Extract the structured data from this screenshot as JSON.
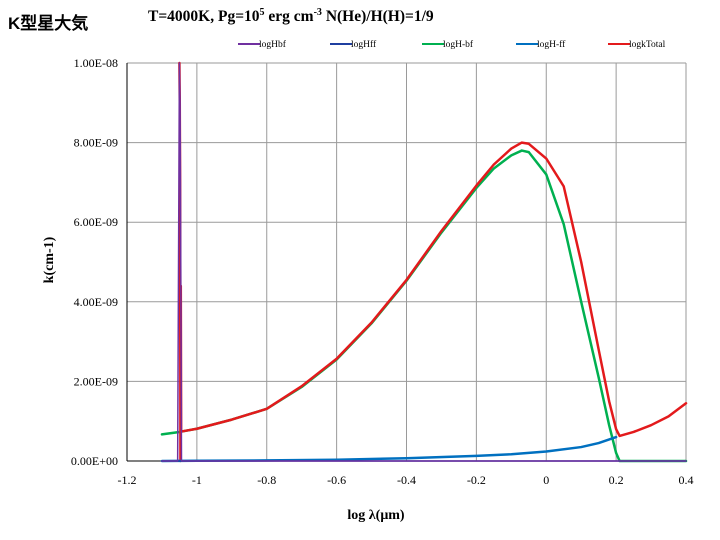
{
  "page": {
    "tag": "K型星大気"
  },
  "chart_data": {
    "type": "line",
    "title_parts": {
      "main": "T=4000K, Pg=10",
      "sup1": "5",
      "mid": " erg cm",
      "sup2": "-3",
      "tail": " N(He)/H(H)=1/9"
    },
    "xlabel": "log λ(μm)",
    "ylabel": "k(cm-1)",
    "xlim": [
      -1.2,
      0.4
    ],
    "ylim": [
      0,
      1e-08
    ],
    "x_ticks": [
      -1.2,
      -1,
      -0.8,
      -0.6,
      -0.4,
      -0.2,
      0,
      0.2,
      0.4
    ],
    "x_tick_labels": [
      "-1.2",
      "-1",
      "-0.8",
      "-0.6",
      "-0.4",
      "-0.2",
      "0",
      "0.2",
      "0.4"
    ],
    "y_ticks": [
      0,
      2e-09,
      4e-09,
      6e-09,
      8e-09,
      1e-08
    ],
    "y_tick_labels": [
      "0.00E+00",
      "2.00E-09",
      "4.00E-09",
      "6.00E-09",
      "8.00E-09",
      "1.00E-08"
    ],
    "grid": true,
    "legend_position": "top",
    "series": [
      {
        "name": "logHbf",
        "color": "#7030a0",
        "points": [
          [
            -1.1,
            0.0
          ],
          [
            -1.06,
            0.0
          ],
          [
            -1.055,
            0.0
          ],
          [
            -1.05,
            1e-08
          ],
          [
            -1.048,
            9e-09
          ],
          [
            -1.047,
            7e-09
          ],
          [
            -1.045,
            2.6e-09
          ],
          [
            -1.044,
            0.0
          ],
          [
            -0.8,
            0.0
          ],
          [
            -0.4,
            0.0
          ],
          [
            0.0,
            0.0
          ],
          [
            0.2,
            0.0
          ],
          [
            0.4,
            0.0
          ]
        ]
      },
      {
        "name": "logHff",
        "color": "#1f3fa0",
        "points": [
          [
            -1.1,
            0.0
          ],
          [
            -0.8,
            0.0
          ],
          [
            -0.4,
            0.0
          ],
          [
            0.0,
            0.0
          ],
          [
            0.2,
            0.0
          ],
          [
            0.4,
            0.0
          ]
        ]
      },
      {
        "name": "logH-bf",
        "color": "#00b050",
        "points": [
          [
            -1.1,
            6.7e-10
          ],
          [
            -1.05,
            7.3e-10
          ],
          [
            -1.0,
            8.1e-10
          ],
          [
            -0.9,
            1.04e-09
          ],
          [
            -0.8,
            1.31e-09
          ],
          [
            -0.7,
            1.86e-09
          ],
          [
            -0.6,
            2.55e-09
          ],
          [
            -0.5,
            3.46e-09
          ],
          [
            -0.4,
            4.53e-09
          ],
          [
            -0.3,
            5.74e-09
          ],
          [
            -0.2,
            6.86e-09
          ],
          [
            -0.15,
            7.35e-09
          ],
          [
            -0.1,
            7.68e-09
          ],
          [
            -0.07,
            7.8e-09
          ],
          [
            -0.05,
            7.76e-09
          ],
          [
            0.0,
            7.2e-09
          ],
          [
            0.05,
            5.95e-09
          ],
          [
            0.1,
            4e-09
          ],
          [
            0.15,
            2.1e-09
          ],
          [
            0.18,
            9e-10
          ],
          [
            0.2,
            2e-10
          ],
          [
            0.21,
            0.0
          ],
          [
            0.3,
            0.0
          ],
          [
            0.4,
            0.0
          ]
        ]
      },
      {
        "name": "logH-ff",
        "color": "#0070c0",
        "points": [
          [
            -1.1,
            0.0
          ],
          [
            -1.0,
            5e-12
          ],
          [
            -0.8,
            1.5e-11
          ],
          [
            -0.6,
            3.2e-11
          ],
          [
            -0.4,
            7e-11
          ],
          [
            -0.2,
            1.3e-10
          ],
          [
            -0.1,
            1.7e-10
          ],
          [
            0.0,
            2.4e-10
          ],
          [
            0.1,
            3.5e-10
          ],
          [
            0.15,
            4.5e-10
          ],
          [
            0.2,
            6e-10
          ]
        ]
      },
      {
        "name": "logkTotal",
        "color": "#e31a1c",
        "points": [
          [
            -1.05,
            1e-08
          ],
          [
            -1.049,
            9e-09
          ],
          [
            -1.048,
            7e-09
          ],
          [
            -1.047,
            0.0
          ],
          [
            -1.046,
            4.4e-09
          ],
          [
            -1.045,
            7.4e-10
          ],
          [
            -1.0,
            8.1e-10
          ],
          [
            -0.9,
            1.04e-09
          ],
          [
            -0.8,
            1.31e-09
          ],
          [
            -0.7,
            1.88e-09
          ],
          [
            -0.6,
            2.57e-09
          ],
          [
            -0.5,
            3.48e-09
          ],
          [
            -0.4,
            4.55e-09
          ],
          [
            -0.3,
            5.78e-09
          ],
          [
            -0.2,
            6.92e-09
          ],
          [
            -0.15,
            7.45e-09
          ],
          [
            -0.1,
            7.85e-09
          ],
          [
            -0.07,
            8e-09
          ],
          [
            -0.05,
            7.97e-09
          ],
          [
            0.0,
            7.6e-09
          ],
          [
            0.05,
            6.9e-09
          ],
          [
            0.1,
            5e-09
          ],
          [
            0.15,
            2.8e-09
          ],
          [
            0.18,
            1.5e-09
          ],
          [
            0.2,
            8e-10
          ],
          [
            0.21,
            6.3e-10
          ],
          [
            0.25,
            7.3e-10
          ],
          [
            0.3,
            9e-10
          ],
          [
            0.35,
            1.12e-09
          ],
          [
            0.4,
            1.45e-09
          ]
        ]
      }
    ]
  }
}
